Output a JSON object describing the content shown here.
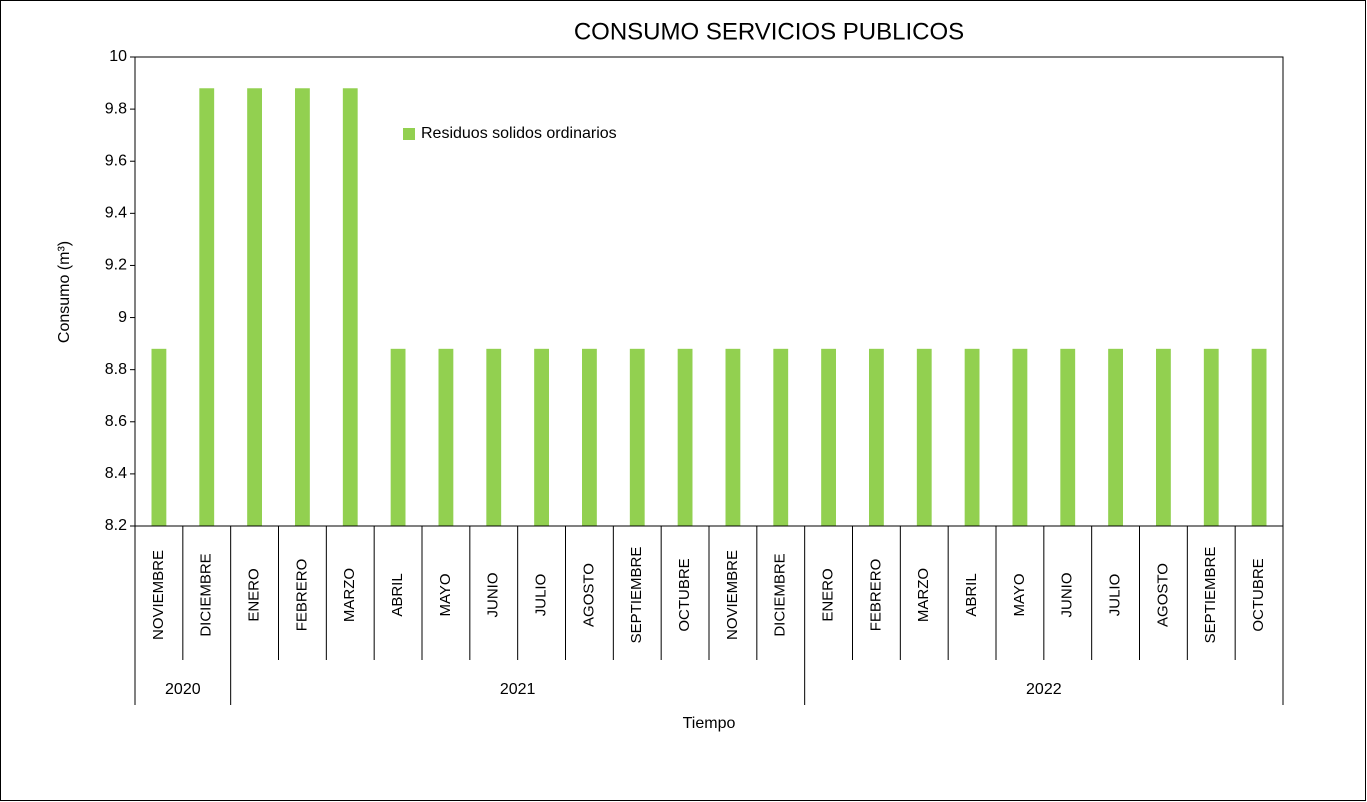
{
  "chart_data": {
    "type": "bar",
    "title": "CONSUMO SERVICIOS  PUBLICOS",
    "x_label": "Tiempo",
    "y_label": "Consumo (m³)",
    "category_groups": [
      {
        "name": "2020",
        "categories": [
          "NOVIEMBRE",
          "DICIEMBRE"
        ]
      },
      {
        "name": "2021",
        "categories": [
          "ENERO",
          "FEBRERO",
          "MARZO",
          "ABRIL",
          "MAYO",
          "JUNIO",
          "JULIO",
          "AGOSTO",
          "SEPTIEMBRE",
          "OCTUBRE",
          "NOVIEMBRE",
          "DICIEMBRE"
        ]
      },
      {
        "name": "2022",
        "categories": [
          "ENERO",
          "FEBRERO",
          "MARZO",
          "ABRIL",
          "MAYO",
          "JUNIO",
          "JULIO",
          "AGOSTO",
          "SEPTIEMBRE",
          "OCTUBRE"
        ]
      }
    ],
    "series": [
      {
        "name": "Residuos solidos ordinarios",
        "color": "#92d050",
        "values": [
          8.88,
          9.88,
          9.88,
          9.88,
          9.88,
          8.88,
          8.88,
          8.88,
          8.88,
          8.88,
          8.88,
          8.88,
          8.88,
          8.88,
          8.88,
          8.88,
          8.88,
          8.88,
          8.88,
          8.88,
          8.88,
          8.88,
          8.88,
          8.88
        ]
      }
    ],
    "ylim": [
      8.2,
      10
    ],
    "yticks": [
      8.2,
      8.4,
      8.6,
      8.8,
      9,
      9.2,
      9.4,
      9.6,
      9.8,
      10
    ],
    "grid": false,
    "legend": "top-left"
  }
}
